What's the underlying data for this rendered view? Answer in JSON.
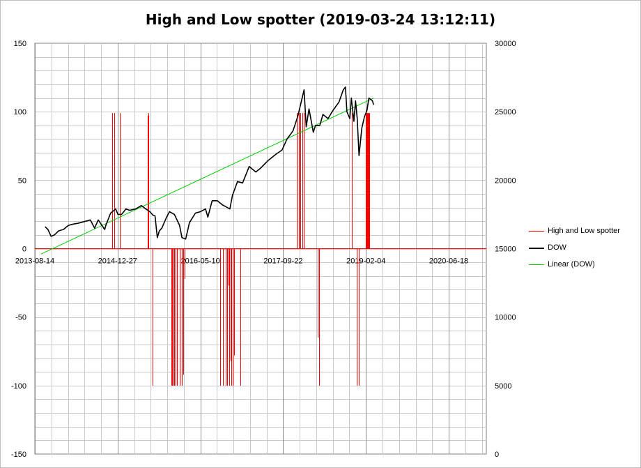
{
  "chart_data": {
    "type": "line",
    "title": "High and Low spotter (2019-03-24 13:12:11)",
    "xlabel": "",
    "ylabel": "",
    "grid": true,
    "legend_position": "right",
    "x_axis": {
      "type": "date",
      "min": "2013-08-14",
      "max": "2021-01-31",
      "tick_labels": [
        "2013-08-14",
        "2014-12-27",
        "2016-05-10",
        "2017-09-22",
        "2019-02-04",
        "2020-06-18"
      ]
    },
    "y_left": {
      "min": -150,
      "max": 150,
      "tick_labels": [
        "-150",
        "-100",
        "-50",
        "0",
        "50",
        "100",
        "150"
      ]
    },
    "y_right": {
      "min": 0,
      "max": 30000,
      "tick_labels": [
        "0",
        "5000",
        "10000",
        "15000",
        "20000",
        "25000",
        "30000"
      ]
    },
    "series": [
      {
        "name": "High and Low spotter",
        "axis": "left",
        "color": "#ff0000",
        "type": "spikes",
        "points": [
          [
            "2014-11-25",
            99
          ],
          [
            "2014-12-08",
            99
          ],
          [
            "2015-01-10",
            99
          ],
          [
            "2015-06-28",
            97
          ],
          [
            "2015-06-30",
            99
          ],
          [
            "2015-07-28",
            -100
          ],
          [
            "2015-11-15",
            -100
          ],
          [
            "2015-11-20",
            -100
          ],
          [
            "2015-11-28",
            -100
          ],
          [
            "2015-12-05",
            -100
          ],
          [
            "2015-12-12",
            -100
          ],
          [
            "2015-12-22",
            -100
          ],
          [
            "2016-01-08",
            -100
          ],
          [
            "2016-01-18",
            -100
          ],
          [
            "2016-01-28",
            -92
          ],
          [
            "2016-02-05",
            -22
          ],
          [
            "2016-09-08",
            -100
          ],
          [
            "2016-09-25",
            -100
          ],
          [
            "2016-10-08",
            -100
          ],
          [
            "2016-10-20",
            -100
          ],
          [
            "2016-10-25",
            -27
          ],
          [
            "2016-11-02",
            -100
          ],
          [
            "2016-11-08",
            -82
          ],
          [
            "2016-11-13",
            -100
          ],
          [
            "2016-11-20",
            -100
          ],
          [
            "2016-11-28",
            -78
          ],
          [
            "2017-01-05",
            -100
          ],
          [
            "2017-12-15",
            99
          ],
          [
            "2017-12-24",
            99
          ],
          [
            "2018-01-05",
            99
          ],
          [
            "2018-01-14",
            99
          ],
          [
            "2018-01-24",
            99
          ],
          [
            "2018-04-20",
            -65
          ],
          [
            "2018-04-27",
            -100
          ],
          [
            "2018-11-09",
            99
          ],
          [
            "2018-12-10",
            -100
          ],
          [
            "2018-12-22",
            -100
          ],
          [
            "2019-02-05",
            99
          ],
          [
            "2019-02-09",
            99
          ],
          [
            "2019-02-13",
            99
          ],
          [
            "2019-02-17",
            99
          ],
          [
            "2019-02-21",
            99
          ],
          [
            "2019-02-25",
            99
          ]
        ]
      },
      {
        "name": "DOW",
        "axis": "right",
        "color": "#000000",
        "type": "line",
        "points": [
          [
            "2013-10-15",
            16600
          ],
          [
            "2013-11-01",
            16400
          ],
          [
            "2013-11-20",
            15900
          ],
          [
            "2013-12-10",
            16000
          ],
          [
            "2014-01-05",
            16300
          ],
          [
            "2014-02-03",
            16400
          ],
          [
            "2014-03-05",
            16700
          ],
          [
            "2014-04-05",
            16800
          ],
          [
            "2014-05-01",
            16850
          ],
          [
            "2014-06-01",
            16950
          ],
          [
            "2014-07-01",
            17050
          ],
          [
            "2014-07-15",
            17100
          ],
          [
            "2014-08-10",
            16500
          ],
          [
            "2014-09-01",
            17100
          ],
          [
            "2014-10-10",
            16400
          ],
          [
            "2014-10-17",
            16700
          ],
          [
            "2014-11-15",
            17600
          ],
          [
            "2014-12-15",
            17900
          ],
          [
            "2014-12-29",
            17500
          ],
          [
            "2015-01-20",
            17500
          ],
          [
            "2015-02-15",
            17900
          ],
          [
            "2015-03-10",
            17800
          ],
          [
            "2015-04-15",
            17900
          ],
          [
            "2015-05-20",
            18150
          ],
          [
            "2015-06-15",
            17900
          ],
          [
            "2015-07-10",
            17700
          ],
          [
            "2015-07-28",
            17450
          ],
          [
            "2015-08-10",
            17400
          ],
          [
            "2015-08-24",
            15800
          ],
          [
            "2015-09-05",
            16300
          ],
          [
            "2015-09-20",
            16500
          ],
          [
            "2015-10-15",
            17200
          ],
          [
            "2015-11-05",
            17700
          ],
          [
            "2015-12-05",
            17500
          ],
          [
            "2016-01-05",
            16700
          ],
          [
            "2016-01-20",
            15800
          ],
          [
            "2016-02-11",
            15700
          ],
          [
            "2016-03-05",
            16900
          ],
          [
            "2016-04-10",
            17600
          ],
          [
            "2016-05-10",
            17700
          ],
          [
            "2016-06-10",
            17900
          ],
          [
            "2016-06-24",
            17300
          ],
          [
            "2016-07-20",
            18500
          ],
          [
            "2016-08-20",
            18500
          ],
          [
            "2016-09-20",
            18200
          ],
          [
            "2016-11-04",
            17900
          ],
          [
            "2016-11-20",
            18900
          ],
          [
            "2016-12-20",
            19900
          ],
          [
            "2017-01-20",
            19800
          ],
          [
            "2017-03-01",
            21000
          ],
          [
            "2017-04-10",
            20600
          ],
          [
            "2017-05-10",
            20900
          ],
          [
            "2017-06-20",
            21400
          ],
          [
            "2017-08-10",
            21900
          ],
          [
            "2017-09-15",
            22200
          ],
          [
            "2017-10-15",
            23000
          ],
          [
            "2017-11-20",
            23600
          ],
          [
            "2017-12-20",
            24700
          ],
          [
            "2018-01-26",
            26600
          ],
          [
            "2018-02-08",
            23900
          ],
          [
            "2018-02-25",
            25200
          ],
          [
            "2018-03-23",
            23500
          ],
          [
            "2018-04-05",
            24000
          ],
          [
            "2018-05-01",
            24000
          ],
          [
            "2018-05-20",
            24800
          ],
          [
            "2018-06-20",
            24500
          ],
          [
            "2018-07-20",
            25100
          ],
          [
            "2018-08-25",
            25700
          ],
          [
            "2018-09-20",
            26600
          ],
          [
            "2018-10-03",
            26800
          ],
          [
            "2018-10-12",
            25000
          ],
          [
            "2018-10-29",
            24500
          ],
          [
            "2018-11-08",
            26000
          ],
          [
            "2018-11-23",
            24300
          ],
          [
            "2018-12-03",
            25800
          ],
          [
            "2018-12-13",
            24500
          ],
          [
            "2018-12-24",
            21800
          ],
          [
            "2019-01-10",
            23800
          ],
          [
            "2019-01-25",
            24600
          ],
          [
            "2019-02-10",
            25100
          ],
          [
            "2019-02-22",
            26000
          ],
          [
            "2019-03-05",
            25900
          ],
          [
            "2019-03-15",
            25800
          ],
          [
            "2019-03-22",
            25500
          ]
        ]
      },
      {
        "name": "Linear (DOW)",
        "axis": "right",
        "color": "#00cc00",
        "type": "trendline",
        "points": [
          [
            "2013-09-20",
            14600
          ],
          [
            "2019-03-22",
            26000
          ]
        ]
      }
    ]
  }
}
